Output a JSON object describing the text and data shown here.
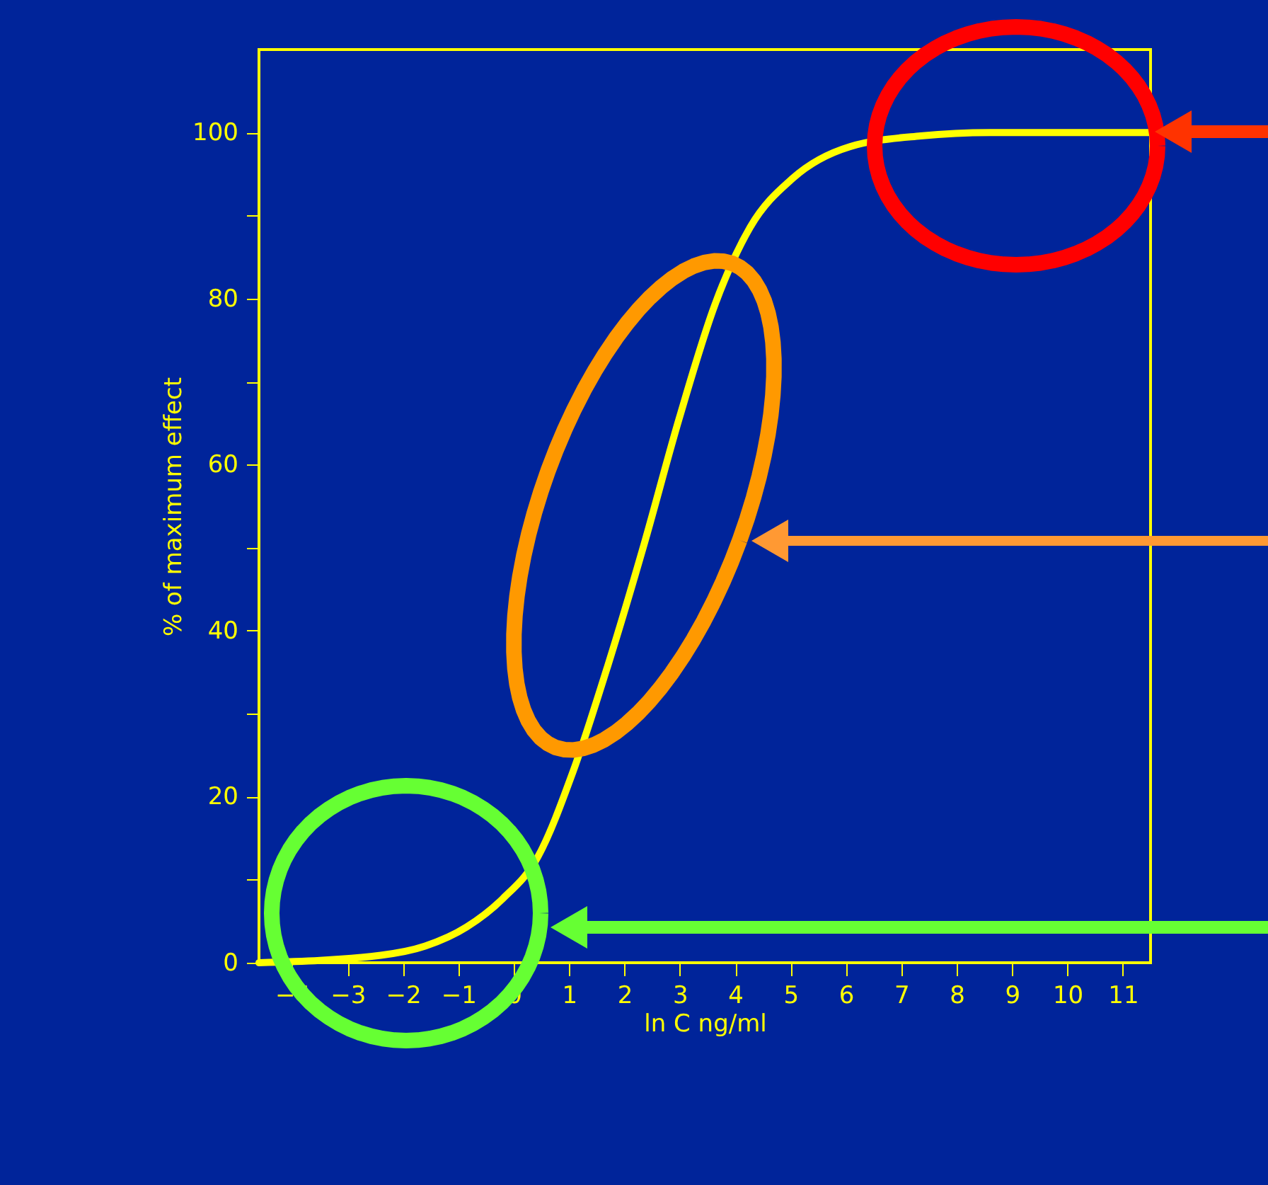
{
  "chart_data": {
    "type": "line",
    "xlabel": "ln C  ng/ml",
    "ylabel": "% of maximum effect",
    "x": [
      -4.6,
      -2.4,
      -1.6,
      -0.85,
      -0.2,
      0.44,
      1.07,
      1.7,
      2.35,
      2.99,
      3.63,
      4.27,
      5.04,
      6.07,
      7.35,
      8.6,
      11.5
    ],
    "series": [
      {
        "color": "#ffff00",
        "values": [
          0,
          0.9,
          2,
          4.3,
          7.7,
          12.8,
          23,
          35.8,
          50.3,
          65.6,
          79.2,
          88.6,
          94.5,
          98.3,
          99.6,
          100,
          100
        ]
      }
    ],
    "xlim": [
      -4.6,
      11.5
    ],
    "xticks": [
      -4,
      -3,
      -2,
      -1,
      0,
      1,
      2,
      3,
      4,
      5,
      6,
      7,
      8,
      9,
      10,
      11
    ],
    "ylim": [
      0,
      110
    ],
    "yticks": [
      0,
      {
        "value": 10,
        "label": null
      },
      20,
      {
        "value": 30,
        "label": null
      },
      40,
      {
        "value": 50,
        "label": null
      },
      60,
      {
        "value": 70,
        "label": null
      },
      80,
      {
        "value": 90,
        "label": null
      },
      100
    ],
    "grid": false,
    "legend": false,
    "marker": "none",
    "line_style": "solid"
  }
}
